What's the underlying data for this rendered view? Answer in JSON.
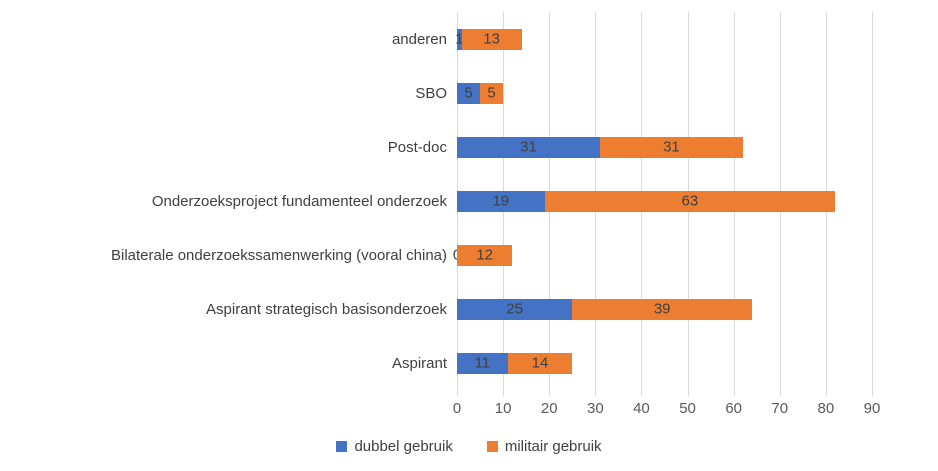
{
  "chart_data": {
    "type": "bar",
    "orientation": "horizontal",
    "stacked": true,
    "title": "",
    "xlabel": "",
    "ylabel": "",
    "categories": [
      "anderen",
      "SBO",
      "Post-doc",
      "Onderzoeksproject fundamenteel onderzoek",
      "Bilaterale onderzoekssamenwerking (vooral china)",
      "Aspirant strategisch basisonderzoek",
      "Aspirant"
    ],
    "series": [
      {
        "name": "dubbel gebruik",
        "color": "#4472c4",
        "values": [
          1,
          5,
          31,
          19,
          0,
          25,
          11
        ]
      },
      {
        "name": "militair gebruik",
        "color": "#ed7d31",
        "values": [
          13,
          5,
          31,
          63,
          12,
          39,
          14
        ]
      }
    ],
    "xlim": [
      0,
      90
    ],
    "xticks": [
      0,
      10,
      20,
      30,
      40,
      50,
      60,
      70,
      80,
      90
    ],
    "grid": "vertical-only",
    "gridline_color": "#d9d9d9",
    "data_labels": true,
    "data_label_color": "#404040",
    "axis_label_color": "#595959",
    "legend_position": "bottom",
    "legend": [
      "dubbel gebruik",
      "militair gebruik"
    ]
  }
}
